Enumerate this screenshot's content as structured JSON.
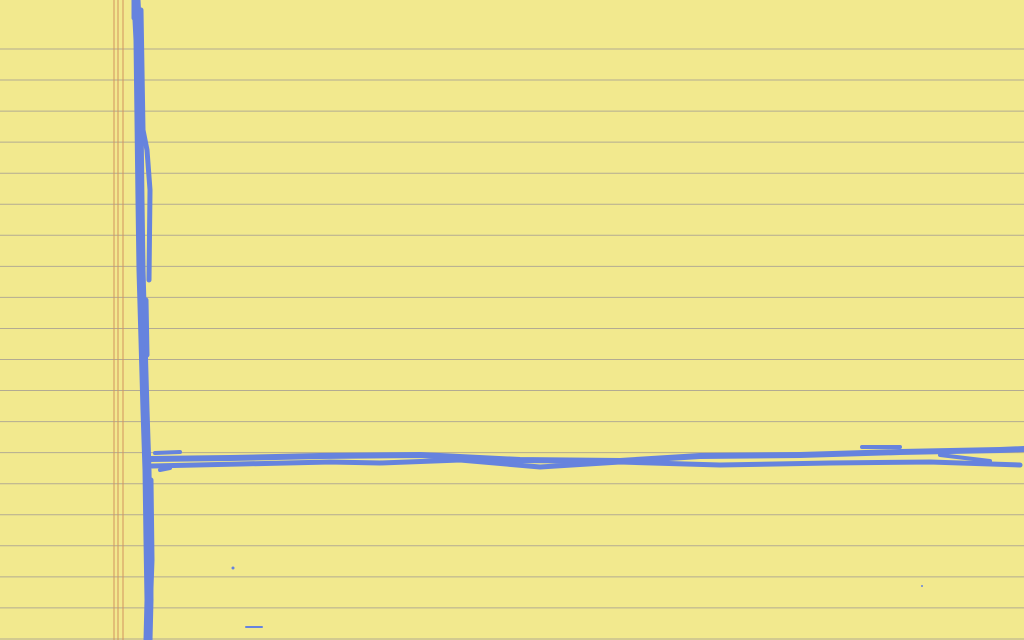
{
  "paper": {
    "background_color": "#f2e98e",
    "rule_line_color": "#b3ab92",
    "margin_line_color": "#d2935d",
    "margin_line_count": 3,
    "ruled_line_count": 20
  },
  "ink": {
    "color": "#6683de",
    "strokes": [
      {
        "name": "vertical-axis-stroke"
      },
      {
        "name": "horizontal-axis-stroke"
      }
    ]
  }
}
